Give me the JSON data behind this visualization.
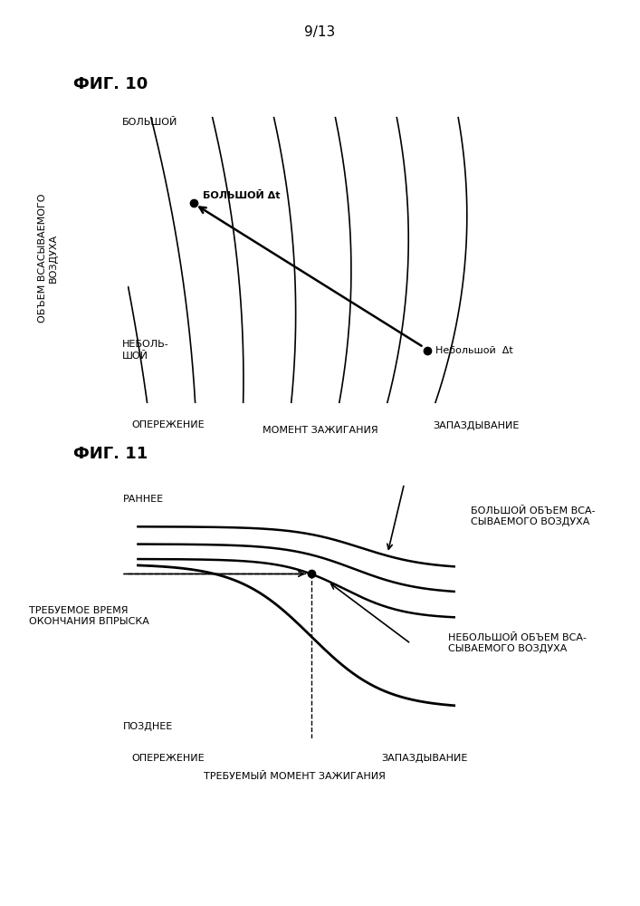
{
  "page_label": "9/13",
  "fig10_title": "ФИГ. 10",
  "fig11_title": "ФИГ. 11",
  "fig10_ylabel_top": "БОЛЬШОЙ",
  "fig10_ylabel_bottom": "НЕБОЛЬ-\nШОЙ",
  "fig10_ylabel_rotated": "ОБЪЕМ ВСАСЫВАЕМОГО\nВОЗДУХА",
  "fig10_xlabel_left": "ОПЕРЕЖЕНИЕ",
  "fig10_xlabel_right": "ЗАПАЗДЫВАНИЕ",
  "fig10_xlabel": "МОМЕНТ ЗАЖИГАНИЯ",
  "fig10_label_big_dt": "БОЛЬШОЙ Δt",
  "fig10_label_small_dt": "Небольшой  Δt",
  "fig11_ylabel_top": "РАННЕЕ",
  "fig11_ylabel_bottom": "ПОЗДНЕЕ",
  "fig11_ylabel_left": "ТРЕБУЕМОЕ ВРЕМЯ\nОКОНЧАНИЯ ВПРЫСКА",
  "fig11_xlabel_left": "ОПЕРЕЖЕНИЕ",
  "fig11_xlabel_right": "ЗАПАЗДЫВАНИЕ",
  "fig11_xlabel": "ТРЕБУЕМЫЙ МОМЕНТ ЗАЖИГАНИЯ",
  "fig11_label_big": "БОЛЬШОЙ ОБЪЕМ ВСА-\nСЫВАЕМОГО ВОЗДУХА",
  "fig11_label_small": "НЕБОЛЬШОЙ ОБЪЕМ ВСА-\nСЫВАЕМОГО ВОЗДУХА",
  "background_color": "#ffffff",
  "line_color": "#000000"
}
